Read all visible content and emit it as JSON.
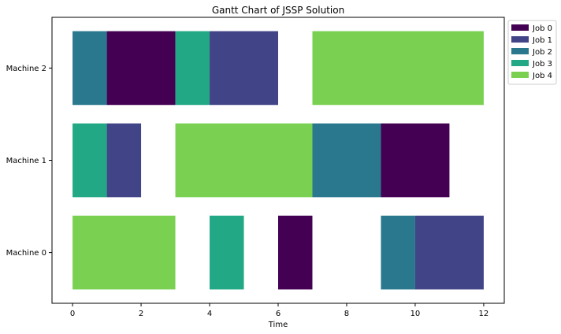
{
  "chart_data": {
    "type": "gantt",
    "title": "Gantt Chart of JSSP Solution",
    "xlabel": "Time",
    "ylabel": "",
    "xlim": [
      -0.6,
      12.6
    ],
    "xticks": [
      0,
      2,
      4,
      6,
      8,
      10,
      12
    ],
    "machines": [
      "Machine 0",
      "Machine 1",
      "Machine 2"
    ],
    "jobs": [
      {
        "name": "Job 0",
        "color": "#440154"
      },
      {
        "name": "Job 1",
        "color": "#414487"
      },
      {
        "name": "Job 2",
        "color": "#2a788e"
      },
      {
        "name": "Job 3",
        "color": "#22a884"
      },
      {
        "name": "Job 4",
        "color": "#7ad151"
      }
    ],
    "tasks": [
      {
        "machine": 0,
        "job": 4,
        "start": 0,
        "end": 3
      },
      {
        "machine": 0,
        "job": 3,
        "start": 4,
        "end": 5
      },
      {
        "machine": 0,
        "job": 0,
        "start": 6,
        "end": 7
      },
      {
        "machine": 0,
        "job": 2,
        "start": 9,
        "end": 10
      },
      {
        "machine": 0,
        "job": 1,
        "start": 10,
        "end": 12
      },
      {
        "machine": 1,
        "job": 3,
        "start": 0,
        "end": 1
      },
      {
        "machine": 1,
        "job": 1,
        "start": 1,
        "end": 2
      },
      {
        "machine": 1,
        "job": 4,
        "start": 3,
        "end": 7
      },
      {
        "machine": 1,
        "job": 2,
        "start": 7,
        "end": 9
      },
      {
        "machine": 1,
        "job": 0,
        "start": 9,
        "end": 11
      },
      {
        "machine": 2,
        "job": 2,
        "start": 0,
        "end": 1
      },
      {
        "machine": 2,
        "job": 0,
        "start": 1,
        "end": 3
      },
      {
        "machine": 2,
        "job": 3,
        "start": 3,
        "end": 4
      },
      {
        "machine": 2,
        "job": 1,
        "start": 4,
        "end": 6
      },
      {
        "machine": 2,
        "job": 4,
        "start": 7,
        "end": 12
      }
    ],
    "grid": false,
    "legend_position": "outside-top-right"
  }
}
